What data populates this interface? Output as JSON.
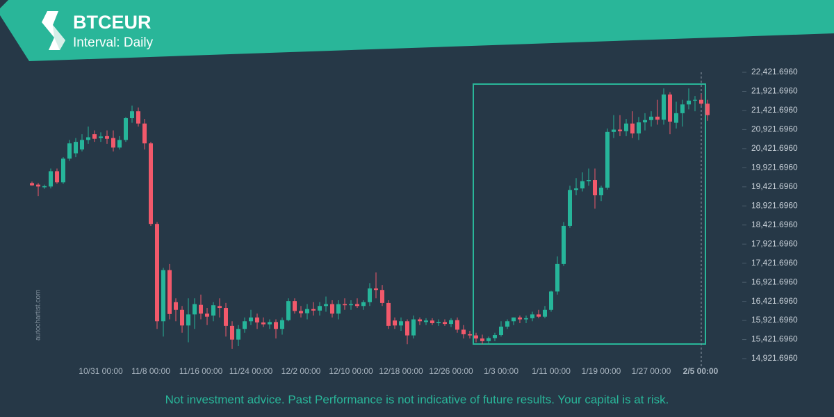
{
  "header": {
    "symbol": "BTCEUR",
    "interval": "Interval: Daily"
  },
  "watermark": "autochartist.com",
  "footer": "Not investment advice. Past Performance is not indicative of future results. Your capital is at risk.",
  "chart_data": {
    "type": "candlestick",
    "up_color": "#26b59a",
    "down_color": "#f2596b",
    "categories": [
      null,
      null,
      null,
      null,
      null,
      null,
      null,
      null,
      null,
      null,
      null,
      "10/31 00:00",
      null,
      null,
      null,
      null,
      null,
      null,
      null,
      "11/8 00:00",
      null,
      null,
      null,
      null,
      null,
      null,
      null,
      "11/16 00:00",
      null,
      null,
      null,
      null,
      null,
      null,
      null,
      "11/24 00:00",
      null,
      null,
      null,
      null,
      null,
      null,
      null,
      "12/2 00:00",
      null,
      null,
      null,
      null,
      null,
      null,
      null,
      "12/10 00:00",
      null,
      null,
      null,
      null,
      null,
      null,
      null,
      "12/18 00:00",
      null,
      null,
      null,
      null,
      null,
      null,
      null,
      "12/26 00:00",
      null,
      null,
      null,
      null,
      null,
      null,
      null,
      "1/3 00:00",
      null,
      null,
      null,
      null,
      null,
      null,
      null,
      "1/11 00:00",
      null,
      null,
      null,
      null,
      null,
      null,
      null,
      "1/19 00:00",
      null,
      null,
      null,
      null,
      null,
      null,
      null,
      "1/27 00:00",
      null,
      null,
      null,
      null,
      null,
      null,
      null,
      null,
      "2/5 00:00"
    ],
    "open": [
      19520,
      19480,
      19410,
      19430,
      19830,
      19540,
      20160,
      20300,
      20400,
      20650,
      20800,
      20700,
      20750,
      20700,
      20450,
      20650,
      21220,
      21400,
      21080,
      20560,
      18450,
      15900,
      17240,
      16400,
      16200,
      15790,
      16080,
      16330,
      16100,
      16050,
      16300,
      16250,
      15780,
      15420,
      15700,
      15900,
      16000,
      15870,
      15820,
      15880,
      15700,
      15930,
      16430,
      16170,
      16110,
      16220,
      16180,
      16300,
      16350,
      16100,
      16350,
      16320,
      16350,
      16300,
      16400,
      16760,
      16720,
      16380,
      15920,
      15790,
      15900,
      15530,
      15950,
      15880,
      15920,
      15850,
      15880,
      15830,
      15930,
      15680,
      15560,
      15530,
      15450,
      15380,
      15460,
      15540,
      15760,
      15900,
      16000,
      15950,
      15980,
      16080,
      16020,
      16200,
      16680,
      17400,
      18400,
      19340,
      19380,
      19570,
      19600,
      19200,
      19400,
      20860,
      20920,
      20880,
      21080,
      20820,
      21110,
      21170,
      21260,
      21180,
      21840,
      21100,
      21350,
      21580,
      21680,
      21700,
      21600
    ],
    "high": [
      19560,
      19520,
      19480,
      19900,
      19900,
      20200,
      20650,
      20700,
      20800,
      21000,
      20900,
      20850,
      20900,
      20900,
      20750,
      21250,
      21550,
      21500,
      21200,
      20600,
      18500,
      17300,
      17400,
      16500,
      16300,
      16500,
      16500,
      16600,
      16250,
      16400,
      16500,
      16380,
      15900,
      15800,
      16000,
      16200,
      16100,
      16000,
      15950,
      15950,
      16000,
      16500,
      16500,
      16300,
      16350,
      16400,
      16400,
      16550,
      16450,
      16450,
      16500,
      16450,
      16500,
      16450,
      16900,
      17180,
      16850,
      16450,
      16000,
      16000,
      15950,
      16050,
      16000,
      15980,
      15980,
      15950,
      15950,
      15980,
      16000,
      15800,
      15650,
      15600,
      15550,
      15500,
      15600,
      15900,
      15950,
      16000,
      16050,
      16050,
      16150,
      16200,
      16300,
      16700,
      17600,
      18500,
      19450,
      19650,
      19800,
      19900,
      19900,
      19450,
      20950,
      21300,
      21300,
      21200,
      21400,
      21250,
      21350,
      21400,
      21700,
      22000,
      21900,
      21650,
      21700,
      22000,
      21800,
      21850,
      21700
    ],
    "low": [
      19450,
      19180,
      19370,
      19380,
      19500,
      19500,
      20100,
      20200,
      20350,
      20550,
      20600,
      20600,
      20550,
      20350,
      20400,
      20600,
      21100,
      21000,
      20400,
      18400,
      15700,
      15500,
      15950,
      15900,
      15600,
      15350,
      15700,
      15950,
      15800,
      15900,
      16000,
      15500,
      15180,
      15250,
      15600,
      15800,
      15700,
      15750,
      15700,
      15450,
      15550,
      15900,
      16100,
      16000,
      15950,
      16050,
      16050,
      16150,
      16000,
      15950,
      16200,
      16200,
      16250,
      16200,
      16300,
      16500,
      16300,
      15700,
      15700,
      15650,
      15300,
      15450,
      15800,
      15800,
      15800,
      15780,
      15780,
      15750,
      15600,
      15450,
      15450,
      15350,
      15300,
      15300,
      15380,
      15500,
      15700,
      15800,
      15850,
      15850,
      15900,
      15980,
      15980,
      16150,
      16600,
      17350,
      18350,
      19200,
      19300,
      19450,
      18850,
      19050,
      19350,
      20700,
      20750,
      20750,
      20700,
      20650,
      20900,
      21000,
      21050,
      21050,
      20800,
      20950,
      21000,
      21450,
      21400,
      21550,
      21150
    ],
    "close": [
      19460,
      19430,
      19440,
      19830,
      19540,
      20160,
      20560,
      20600,
      20650,
      20720,
      20680,
      20740,
      20680,
      20450,
      20650,
      21220,
      21400,
      21080,
      20560,
      18450,
      15900,
      17240,
      16090,
      16200,
      15790,
      16080,
      16350,
      16100,
      16020,
      16320,
      16250,
      15780,
      15420,
      15700,
      15900,
      16000,
      15870,
      15820,
      15880,
      15700,
      15930,
      16430,
      16170,
      16110,
      16220,
      16180,
      16300,
      16350,
      16100,
      16350,
      16320,
      16350,
      16300,
      16400,
      16760,
      16720,
      16380,
      15780,
      15790,
      15900,
      15530,
      15950,
      15900,
      15920,
      15850,
      15880,
      15830,
      15930,
      15680,
      15560,
      15530,
      15450,
      15380,
      15460,
      15540,
      15760,
      15900,
      16000,
      15950,
      15980,
      16080,
      16020,
      16200,
      16680,
      17400,
      18400,
      19340,
      19380,
      19570,
      19600,
      19200,
      19400,
      20860,
      20920,
      20880,
      21080,
      20820,
      21110,
      21170,
      21260,
      21180,
      21840,
      21130,
      21350,
      21580,
      21680,
      21700,
      21600,
      21300
    ],
    "ylim": [
      14758,
      22586
    ],
    "yticks": [
      {
        "value": 14921.696,
        "label": "14,921.6960"
      },
      {
        "value": 15421.696,
        "label": "15,421.6960"
      },
      {
        "value": 15921.696,
        "label": "15,921.6960"
      },
      {
        "value": 16421.696,
        "label": "16,421.6960"
      },
      {
        "value": 16921.696,
        "label": "16,921.6960"
      },
      {
        "value": 17421.696,
        "label": "17,421.6960"
      },
      {
        "value": 17921.696,
        "label": "17,921.6960"
      },
      {
        "value": 18421.696,
        "label": "18,421.6960"
      },
      {
        "value": 18921.696,
        "label": "18,921.6960"
      },
      {
        "value": 19421.696,
        "label": "19,421.6960"
      },
      {
        "value": 19921.696,
        "label": "19,921.6960"
      },
      {
        "value": 20421.696,
        "label": "20,421.6960"
      },
      {
        "value": 20921.696,
        "label": "20,921.6960"
      },
      {
        "value": 21421.696,
        "label": "21,421.6960"
      },
      {
        "value": 21921.696,
        "label": "21,921.6960"
      },
      {
        "value": 22421.696,
        "label": "22,421.6960"
      }
    ]
  }
}
